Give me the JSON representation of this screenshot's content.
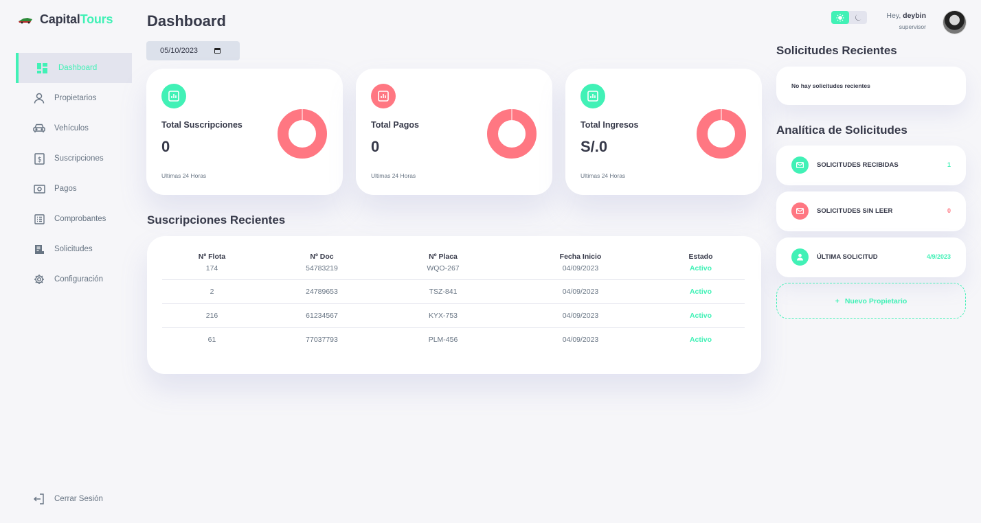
{
  "app": {
    "brand_part1": "Capital",
    "brand_part2": "Tours"
  },
  "sidebar": {
    "items": [
      {
        "label": "Dashboard",
        "icon": "grid-icon",
        "active": true
      },
      {
        "label": "Propietarios",
        "icon": "person-icon"
      },
      {
        "label": "Vehículos",
        "icon": "car-icon"
      },
      {
        "label": "Suscripciones",
        "icon": "receipt-icon"
      },
      {
        "label": "Pagos",
        "icon": "money-icon"
      },
      {
        "label": "Comprobantes",
        "icon": "list-icon"
      },
      {
        "label": "Solicitudes",
        "icon": "document-icon"
      },
      {
        "label": "Configuración",
        "icon": "gear-icon"
      }
    ],
    "logout_label": "Cerrar Sesión"
  },
  "header": {
    "title": "Dashboard",
    "date_value": "05/10/2023"
  },
  "cards": [
    {
      "title": "Total Suscripciones",
      "value": "0",
      "sub": "Ultimas 24 Horas",
      "badge_color": "#41f1b6",
      "donut_color": "#ff7782"
    },
    {
      "title": "Total Pagos",
      "value": "0",
      "sub": "Ultimas 24 Horas",
      "badge_color": "#ff7782",
      "donut_color": "#ff7782"
    },
    {
      "title": "Total Ingresos",
      "value": "S/.0",
      "sub": "Ultimas 24 Horas",
      "badge_color": "#41f1b6",
      "donut_color": "#ff7782"
    }
  ],
  "recent": {
    "title": "Suscripciones Recientes",
    "columns": [
      "Nº Flota",
      "Nº Doc",
      "Nº Placa",
      "Fecha Inicio",
      "Estado"
    ],
    "rows": [
      [
        "174",
        "54783219",
        "WQO-267",
        "04/09/2023",
        "Activo"
      ],
      [
        "2",
        "24789653",
        "TSZ-841",
        "04/09/2023",
        "Activo"
      ],
      [
        "216",
        "61234567",
        "KYX-753",
        "04/09/2023",
        "Activo"
      ],
      [
        "61",
        "77037793",
        "PLM-456",
        "04/09/2023",
        "Activo"
      ]
    ]
  },
  "topbar": {
    "greeting": "Hey, ",
    "username": "deybin",
    "role": "supervisor"
  },
  "right": {
    "requests_title": "Solicitudes Recientes",
    "requests_empty": "No hay solicitudes recientes",
    "analytics_title": "Analítica de Solicitudes",
    "stats": [
      {
        "label": "SOLICITUDES RECIBIDAS",
        "value": "1",
        "color": "#41f1b6",
        "icon": "mail-icon"
      },
      {
        "label": "SOLICITUDES SIN LEER",
        "value": "0",
        "color": "#ff7782",
        "icon": "mail-icon"
      },
      {
        "label": "ÚLTIMA SOLICITUD",
        "value": "4/9/2023",
        "color": "#41f1b6",
        "icon": "person-icon"
      }
    ],
    "new_owner_label": "Nuevo Propietario"
  },
  "colors": {
    "accent": "#41f1b6",
    "danger": "#ff7782",
    "text": "#363949",
    "muted": "#677483"
  }
}
